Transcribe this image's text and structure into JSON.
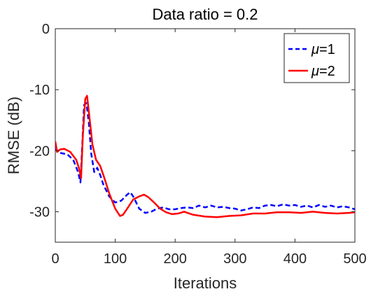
{
  "chart_data": {
    "type": "line",
    "title": "Data ratio = 0.2",
    "xlabel": "Iterations",
    "ylabel": "RMSE (dB)",
    "xlim": [
      0,
      500
    ],
    "ylim": [
      -35,
      0
    ],
    "xticks": [
      0,
      100,
      200,
      300,
      400,
      500
    ],
    "yticks": [
      0,
      -10,
      -20,
      -30
    ],
    "grid": false,
    "legend_position": "top-right",
    "series": [
      {
        "name_symbol": "μ",
        "name_suffix": "=1",
        "color": "#0000ff",
        "style": "dashed",
        "x": [
          0,
          5,
          10,
          20,
          30,
          38,
          42,
          45,
          48,
          52,
          56,
          60,
          65,
          70,
          75,
          80,
          85,
          90,
          95,
          100,
          110,
          120,
          125,
          130,
          135,
          140,
          150,
          160,
          170,
          180,
          190,
          200,
          210,
          220,
          230,
          240,
          250,
          260,
          270,
          280,
          290,
          300,
          310,
          320,
          330,
          340,
          350,
          360,
          370,
          380,
          390,
          400,
          410,
          420,
          430,
          440,
          450,
          460,
          470,
          480,
          490,
          500
        ],
        "values": [
          -19.5,
          -20.3,
          -20.4,
          -20.6,
          -21.5,
          -23.5,
          -25.2,
          -19.0,
          -12.5,
          -12.2,
          -15.5,
          -20.5,
          -23.5,
          -22.8,
          -24.0,
          -25.5,
          -26.5,
          -27.5,
          -28.0,
          -28.5,
          -28.2,
          -27.2,
          -26.8,
          -27.5,
          -28.5,
          -29.5,
          -30.2,
          -30.0,
          -29.5,
          -29.3,
          -29.6,
          -29.6,
          -29.4,
          -29.3,
          -29.4,
          -29.0,
          -29.3,
          -29.0,
          -29.3,
          -29.2,
          -29.4,
          -29.5,
          -29.8,
          -29.6,
          -29.3,
          -29.4,
          -29.0,
          -28.9,
          -29.1,
          -28.8,
          -29.0,
          -28.9,
          -29.2,
          -29.0,
          -29.3,
          -28.9,
          -29.2,
          -29.0,
          -29.3,
          -29.1,
          -29.3,
          -29.6
        ]
      },
      {
        "name_symbol": "μ",
        "name_suffix": "=2",
        "color": "#ff0000",
        "style": "solid",
        "x": [
          0,
          3,
          8,
          15,
          25,
          35,
          40,
          43,
          46,
          50,
          53,
          57,
          62,
          68,
          75,
          82,
          90,
          100,
          108,
          113,
          120,
          130,
          140,
          148,
          155,
          165,
          175,
          185,
          195,
          205,
          215,
          230,
          250,
          270,
          290,
          310,
          330,
          350,
          370,
          390,
          410,
          430,
          450,
          470,
          490,
          500
        ],
        "values": [
          -18.5,
          -20.2,
          -19.8,
          -19.7,
          -20.2,
          -21.5,
          -23.0,
          -24.5,
          -17.5,
          -11.5,
          -11.0,
          -14.5,
          -19.0,
          -21.5,
          -22.5,
          -24.5,
          -27.0,
          -29.5,
          -30.7,
          -30.5,
          -29.5,
          -28.0,
          -27.5,
          -27.2,
          -27.6,
          -28.5,
          -29.5,
          -30.1,
          -30.4,
          -30.3,
          -30.0,
          -30.5,
          -30.8,
          -30.9,
          -30.7,
          -30.6,
          -30.3,
          -30.3,
          -30.1,
          -30.1,
          -30.2,
          -30.0,
          -30.2,
          -30.3,
          -30.2,
          -30.1
        ]
      }
    ]
  }
}
